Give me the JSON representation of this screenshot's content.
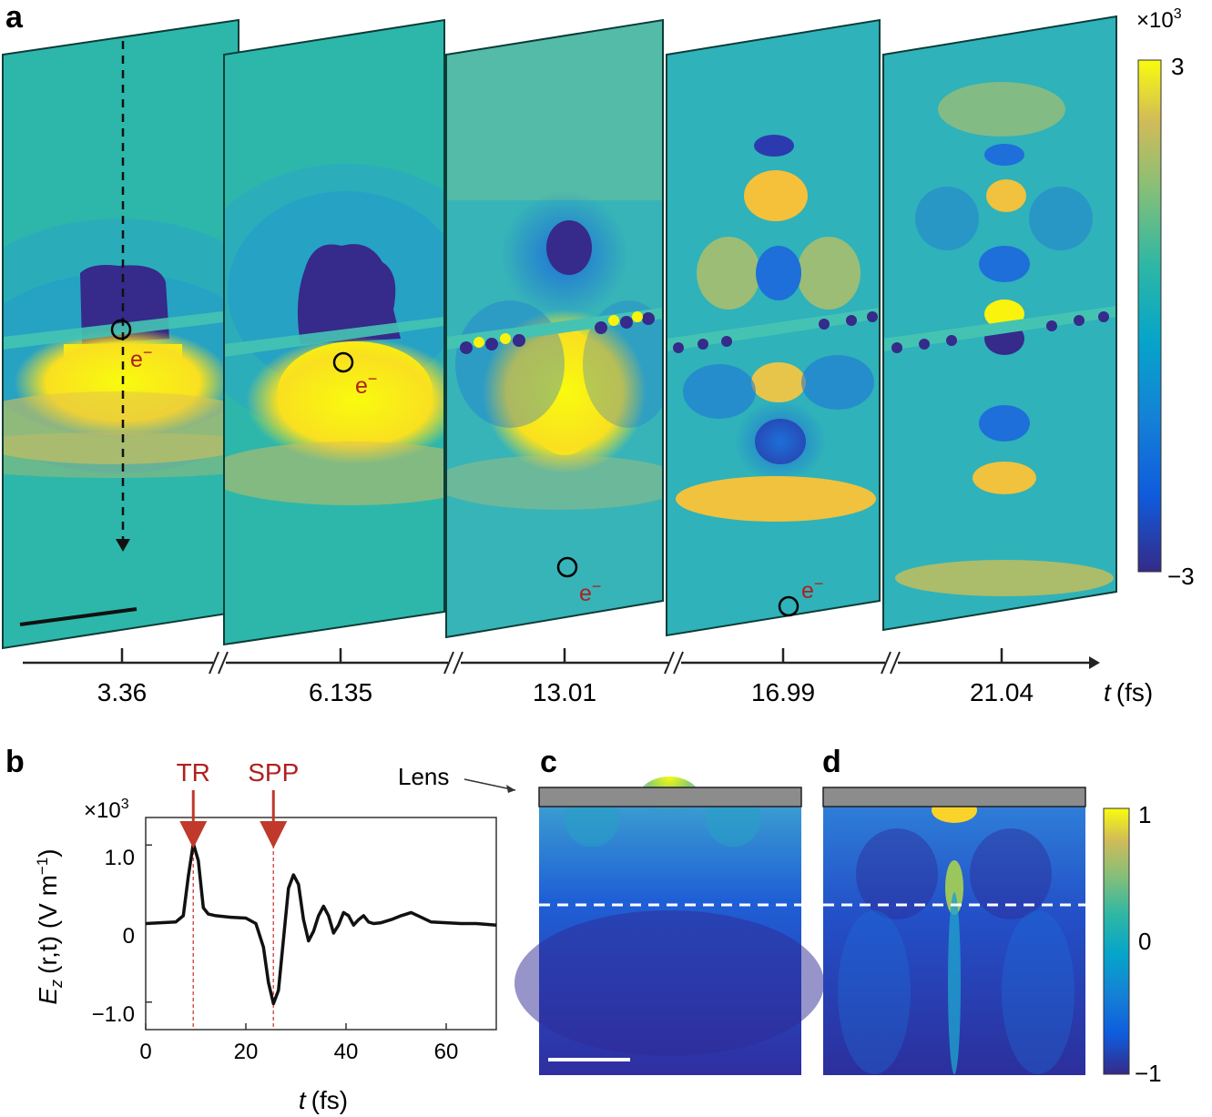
{
  "panels": {
    "a": "a",
    "b": "b",
    "c": "c",
    "d": "d"
  },
  "panel_a": {
    "colorbar": {
      "scale": "×10",
      "scale_exp": "3",
      "max": "3",
      "min": "−3"
    },
    "electron_label": "e",
    "electron_charge": "−",
    "electron_marker": "O",
    "times": [
      "3.36",
      "6.135",
      "13.01",
      "16.99",
      "21.04"
    ],
    "axis_label_t": "t",
    "axis_label_unit": "(fs)"
  },
  "panel_b": {
    "arrow_TR": "TR",
    "arrow_SPP": "SPP",
    "scale": "×10",
    "scale_exp": "3",
    "ylabel_E": "E",
    "ylabel_sub": "z",
    "ylabel_args": "(r,t) (V m",
    "ylabel_exp": "−1",
    "ylabel_close": ")",
    "xlabel_t": "t",
    "xlabel_unit": "(fs)"
  },
  "panel_cd": {
    "lens_label": "Lens",
    "colorbar": {
      "max": "1",
      "mid": "0",
      "min": "−1"
    }
  },
  "chart_data": {
    "type": "line",
    "title": "",
    "xlabel": "t (fs)",
    "ylabel": "E_z (r,t) (V m^-1) ×10^3",
    "xlim": [
      0,
      70
    ],
    "ylim": [
      -1.35,
      1.35
    ],
    "xticks": [
      "0",
      "20",
      "40",
      "60"
    ],
    "yticks": [
      "1.0",
      "0",
      "−1.0"
    ],
    "annotations": [
      {
        "label": "TR",
        "x": 9.5
      },
      {
        "label": "SPP",
        "x": 25.5
      }
    ],
    "series": [
      {
        "name": "E_z",
        "x": [
          0,
          6,
          7.5,
          8.5,
          9.5,
          10.5,
          11.5,
          12.5,
          14,
          17,
          20,
          22,
          23.5,
          24.5,
          25.5,
          26.5,
          27.5,
          28.5,
          29.5,
          30.5,
          31.5,
          32.5,
          33.5,
          34.5,
          35.5,
          36.5,
          37.5,
          38.5,
          39.5,
          40.5,
          41.5,
          42.5,
          43.5,
          44.5,
          45.5,
          47,
          49,
          51,
          53,
          55,
          57,
          60,
          63,
          66,
          70
        ],
        "values": [
          0,
          0.02,
          0.1,
          0.6,
          1.02,
          0.8,
          0.2,
          0.12,
          0.1,
          0.08,
          0.07,
          0.0,
          -0.3,
          -0.75,
          -1.02,
          -0.85,
          -0.2,
          0.45,
          0.62,
          0.5,
          0.05,
          -0.22,
          -0.1,
          0.1,
          0.22,
          0.1,
          -0.12,
          -0.02,
          0.14,
          0.1,
          -0.02,
          0.05,
          0.1,
          0.02,
          0.0,
          0.01,
          0.05,
          0.1,
          0.14,
          0.08,
          0.02,
          0.01,
          0.0,
          0.0,
          -0.02
        ]
      }
    ]
  }
}
